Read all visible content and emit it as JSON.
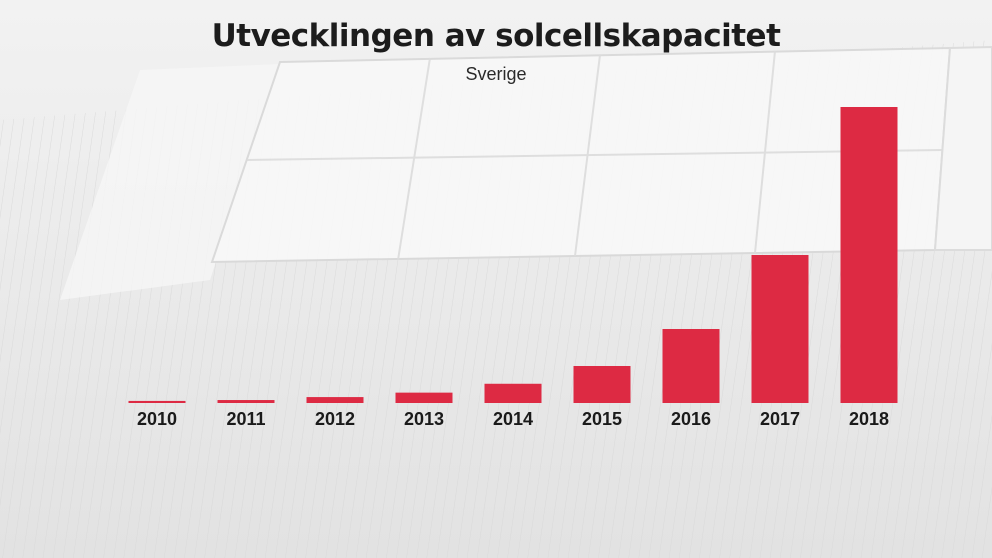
{
  "chart_data": {
    "type": "bar",
    "title": "Utvecklingen av solcellskapacitet",
    "subtitle": "Sverige",
    "categories": [
      "2010",
      "2011",
      "2012",
      "2013",
      "2014",
      "2015",
      "2016",
      "2017",
      "2018"
    ],
    "values": [
      0.7,
      1,
      2,
      3.5,
      6.5,
      12.5,
      25,
      50,
      100
    ],
    "ylim": [
      0,
      100
    ],
    "xlabel": "",
    "ylabel": "",
    "grid": false,
    "colors": {
      "bar": "#dd2a43",
      "text": "#1c1c1c"
    }
  }
}
